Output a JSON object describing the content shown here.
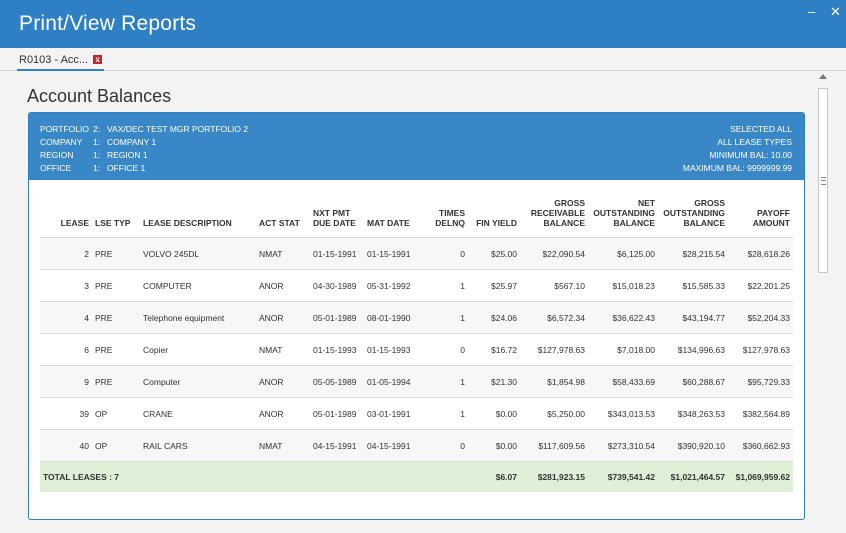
{
  "window": {
    "title": "Print/View Reports",
    "minimize_label": "–",
    "close_label": "✕"
  },
  "tab": {
    "label": "R0103 - Acc...",
    "close_icon": "close-x-icon"
  },
  "page": {
    "title": "Account Balances"
  },
  "header": {
    "left": [
      {
        "key": "PORTFOLIO",
        "code": "2:",
        "value": "VAX/DEC TEST MGR PORTFOLIO 2"
      },
      {
        "key": "COMPANY",
        "code": "1:",
        "value": "COMPANY 1"
      },
      {
        "key": "REGION",
        "code": "1:",
        "value": "REGION 1"
      },
      {
        "key": "OFFICE",
        "code": "1:",
        "value": "OFFICE 1"
      }
    ],
    "right": [
      "SELECTED ALL",
      "ALL LEASE TYPES",
      "MINIMUM BAL: 10.00",
      "MAXIMUM BAL: 9999999.99"
    ]
  },
  "table": {
    "columns": [
      {
        "l1": "",
        "l2": "",
        "l3": "LEASE"
      },
      {
        "l1": "",
        "l2": "",
        "l3": "LSE TYP"
      },
      {
        "l1": "",
        "l2": "",
        "l3": "LEASE DESCRIPTION"
      },
      {
        "l1": "",
        "l2": "",
        "l3": "ACT STAT"
      },
      {
        "l1": "",
        "l2": "NXT PMT",
        "l3": "DUE DATE"
      },
      {
        "l1": "",
        "l2": "",
        "l3": "MAT DATE"
      },
      {
        "l1": "",
        "l2": "TIMES",
        "l3": "DELNQ"
      },
      {
        "l1": "",
        "l2": "",
        "l3": "FIN YIELD"
      },
      {
        "l1": "GROSS",
        "l2": "RECEIVABLE",
        "l3": "BALANCE"
      },
      {
        "l1": "NET",
        "l2": "OUTSTANDING",
        "l3": "BALANCE"
      },
      {
        "l1": "GROSS",
        "l2": "OUTSTANDING",
        "l3": "BALANCE"
      },
      {
        "l1": "",
        "l2": "PAYOFF",
        "l3": "AMOUNT"
      }
    ],
    "rows": [
      [
        "2",
        "PRE",
        "VOLVO 245DL",
        "NMAT",
        "01-15-1991",
        "01-15-1991",
        "0",
        "$25.00",
        "$22,090.54",
        "$6,125.00",
        "$28,215.54",
        "$28,618.26"
      ],
      [
        "3",
        "PRE",
        "COMPUTER",
        "ANOR",
        "04-30-1989",
        "05-31-1992",
        "1",
        "$25.97",
        "$567.10",
        "$15,018.23",
        "$15,585.33",
        "$22,201.25"
      ],
      [
        "4",
        "PRE",
        "Telephone equipment",
        "ANOR",
        "05-01-1989",
        "08-01-1990",
        "1",
        "$24.06",
        "$6,572.34",
        "$36,622.43",
        "$43,194.77",
        "$52,204.33"
      ],
      [
        "6",
        "PRE",
        "Copier",
        "NMAT",
        "01-15-1993",
        "01-15-1993",
        "0",
        "$16.72",
        "$127,978.63",
        "$7,018.00",
        "$134,996.63",
        "$127,978.63"
      ],
      [
        "9",
        "PRE",
        "Computer",
        "ANOR",
        "05-05-1989",
        "01-05-1994",
        "1",
        "$21.30",
        "$1,854.98",
        "$58,433.69",
        "$60,288.67",
        "$95,729.33"
      ],
      [
        "39",
        "OP",
        "CRANE",
        "ANOR",
        "05-01-1989",
        "03-01-1991",
        "1",
        "$0.00",
        "$5,250.00",
        "$343,013.53",
        "$348,263.53",
        "$382,564.89"
      ],
      [
        "40",
        "OP",
        "RAIL CARS",
        "NMAT",
        "04-15-1991",
        "04-15-1991",
        "0",
        "$0.00",
        "$117,609.56",
        "$273,310.54",
        "$390,920.10",
        "$360,662.93"
      ]
    ],
    "total": {
      "label": "TOTAL LEASES : 7",
      "fin_yield": "$6.07",
      "gross_receivable": "$281,923.15",
      "net_outstanding": "$739,541.42",
      "gross_outstanding": "$1,021,464.57",
      "payoff": "$1,069,959.62"
    }
  }
}
